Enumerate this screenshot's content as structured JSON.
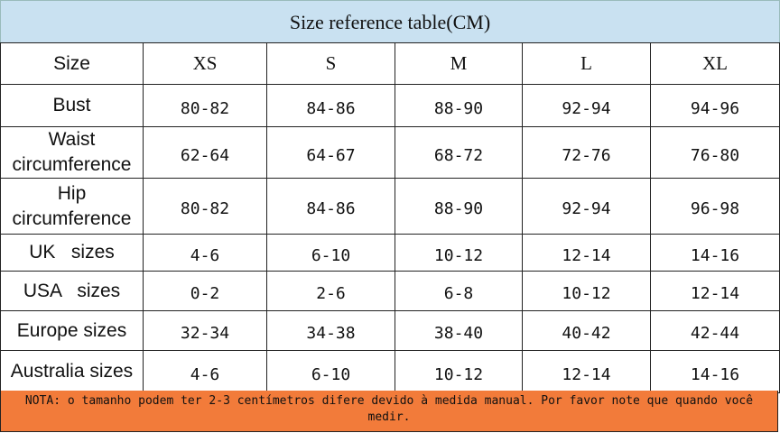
{
  "header": {
    "title": "Size reference table(CM)"
  },
  "table": {
    "columns": [
      "Size",
      "XS",
      "S",
      "M",
      "L",
      "XL"
    ],
    "rows": [
      [
        "Bust",
        "80-82",
        "84-86",
        "88-90",
        "92-94",
        "94-96"
      ],
      [
        "Waist circumference",
        "62-64",
        "64-67",
        "68-72",
        "72-76",
        "76-80"
      ],
      [
        "Hip circumference",
        "80-82",
        "84-86",
        "88-90",
        "92-94",
        "96-98"
      ],
      [
        "UK   sizes",
        "4-6",
        "6-10",
        "10-12",
        "12-14",
        "14-16"
      ],
      [
        "USA   sizes",
        "0-2",
        "2-6",
        "6-8",
        "10-12",
        "12-14"
      ],
      [
        "Europe sizes",
        "32-34",
        "34-38",
        "38-40",
        "40-42",
        "42-44"
      ],
      [
        "Australia sizes",
        "4-6",
        "6-10",
        "10-12",
        "12-14",
        "14-16"
      ]
    ]
  },
  "note": "NOTA: o tamanho podem ter 2-3 centímetros difere devido à medida manual. Por favor note que quando você medir."
}
